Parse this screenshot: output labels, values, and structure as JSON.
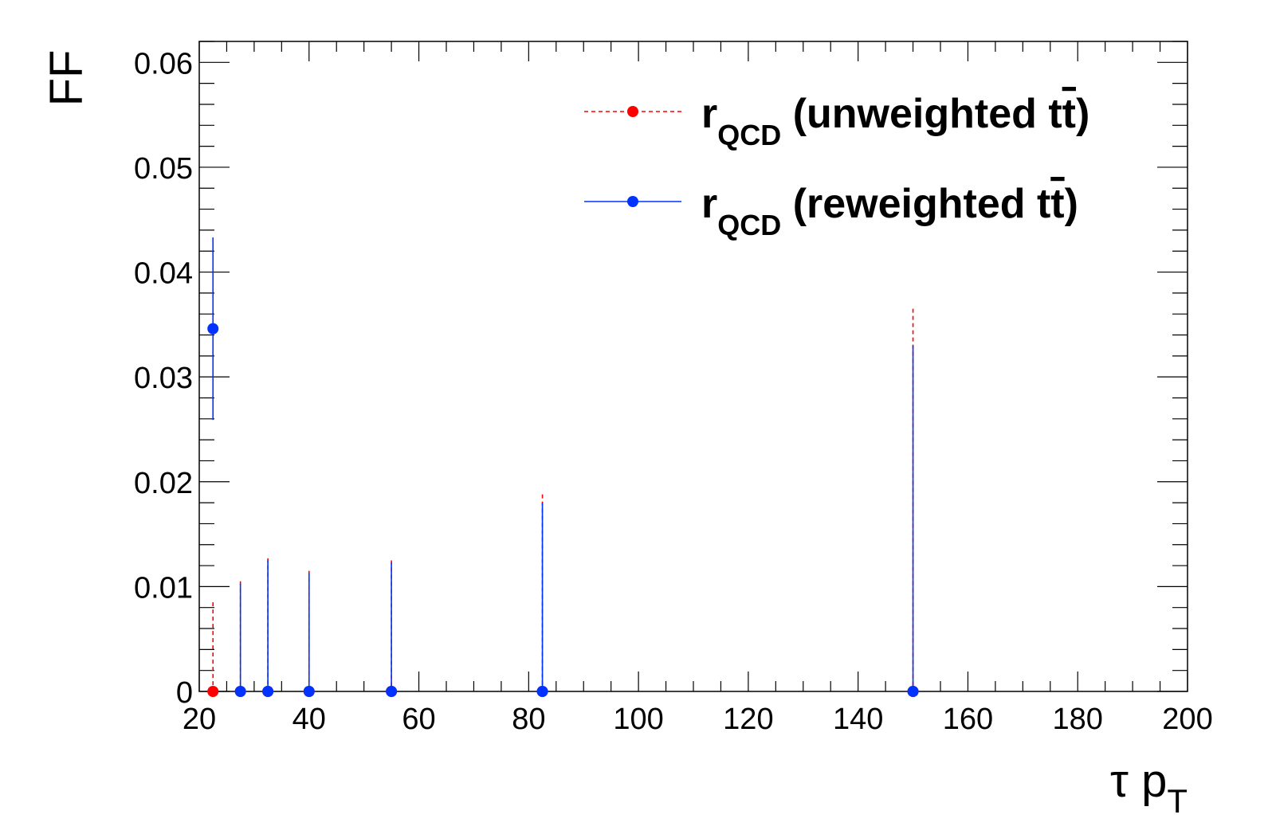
{
  "chart_data": {
    "type": "scatter",
    "title": "",
    "xlabel": {
      "main": "τ p",
      "sub": "T"
    },
    "ylabel": "FF",
    "xlim": [
      20,
      200
    ],
    "ylim": [
      0,
      0.062
    ],
    "x_ticks": [
      "20",
      "40",
      "60",
      "80",
      "100",
      "120",
      "140",
      "160",
      "180",
      "200"
    ],
    "y_ticks": [
      "0",
      "0.01",
      "0.02",
      "0.03",
      "0.04",
      "0.05",
      "0.06"
    ],
    "legend_position": "top-right",
    "series": [
      {
        "name": "r",
        "name_sub": "QCD",
        "name_suffix": " (unweighted t",
        "name_bar": "t",
        "name_close": ")",
        "color": "#ff0000",
        "line_style": "dashed",
        "points": [
          {
            "x": 22.5,
            "y": 0.0,
            "err": 0.0085
          },
          {
            "x": 27.5,
            "y": 0.0,
            "err": 0.0105
          },
          {
            "x": 32.5,
            "y": 0.0,
            "err": 0.0127
          },
          {
            "x": 40.0,
            "y": 0.0,
            "err": 0.0115
          },
          {
            "x": 55.0,
            "y": 0.0,
            "err": 0.0125
          },
          {
            "x": 82.5,
            "y": 0.0,
            "err": 0.0188
          },
          {
            "x": 150.0,
            "y": 0.0,
            "err": 0.0365
          }
        ]
      },
      {
        "name": "r",
        "name_sub": "QCD",
        "name_suffix": " (reweighted t",
        "name_bar": "t",
        "name_close": ")",
        "color": "#0033ff",
        "line_style": "solid",
        "points": [
          {
            "x": 22.5,
            "y": 0.0346,
            "err": 0.0087
          },
          {
            "x": 27.5,
            "y": 0.0,
            "err": 0.0103
          },
          {
            "x": 32.5,
            "y": 0.0,
            "err": 0.0125
          },
          {
            "x": 40.0,
            "y": 0.0,
            "err": 0.0113
          },
          {
            "x": 55.0,
            "y": 0.0,
            "err": 0.0123
          },
          {
            "x": 82.5,
            "y": 0.0,
            "err": 0.018
          },
          {
            "x": 150.0,
            "y": 0.0,
            "err": 0.033
          }
        ]
      }
    ]
  }
}
